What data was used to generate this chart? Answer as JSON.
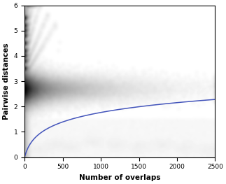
{
  "xlim": [
    0,
    2500
  ],
  "ylim": [
    0,
    6
  ],
  "xticks": [
    0,
    500,
    1000,
    1500,
    2000,
    2500
  ],
  "yticks": [
    0,
    1,
    2,
    3,
    4,
    5,
    6
  ],
  "xlabel": "Number of overlaps",
  "ylabel": "Pairwise distances",
  "blue_curve_color": "#4455bb",
  "blue_curve_lw": 1.1,
  "background_color": "#ffffff",
  "figsize": [
    3.23,
    2.63
  ],
  "dpi": 100,
  "curve_a": 0.58,
  "curve_b": 0.02
}
